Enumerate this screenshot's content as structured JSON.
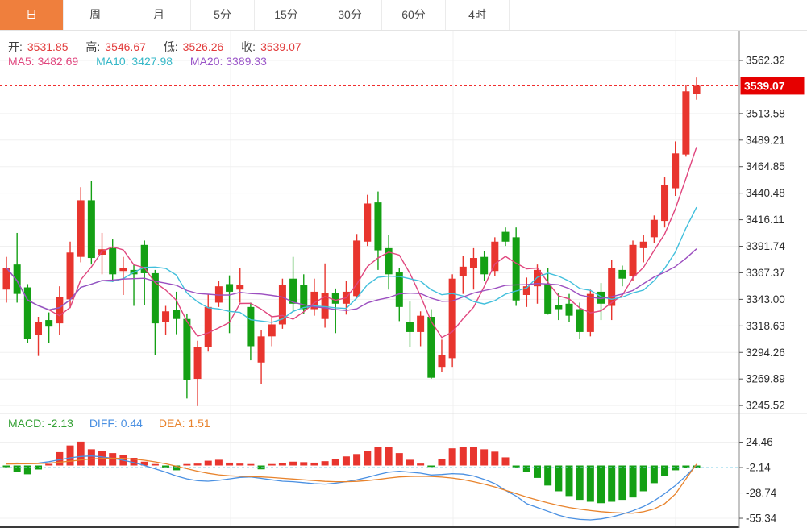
{
  "tabs": [
    {
      "label": "日",
      "active": true
    },
    {
      "label": "周",
      "active": false
    },
    {
      "label": "月",
      "active": false
    },
    {
      "label": "5分",
      "active": false
    },
    {
      "label": "15分",
      "active": false
    },
    {
      "label": "30分",
      "active": false
    },
    {
      "label": "60分",
      "active": false
    },
    {
      "label": "4时",
      "active": false
    }
  ],
  "legend": {
    "open_label": "开:",
    "open": "3531.85",
    "high_label": "高:",
    "high": "3546.67",
    "low_label": "低:",
    "low": "3526.26",
    "close_label": "收:",
    "close": "3539.07",
    "ma5": "MA5: 3482.69",
    "ma10": "MA10: 3427.98",
    "ma20": "MA20: 3389.33"
  },
  "macd_legend": {
    "macd": "MACD: -2.13",
    "diff": "DIFF: 0.44",
    "dea": "DEA: 1.51"
  },
  "colors": {
    "up": "#e8352e",
    "down": "#14a014",
    "tab_active_bg": "#ef7f3d",
    "ma5": "#e0467e",
    "ma10": "#41bfdc",
    "ma20": "#9c4fc0",
    "diff": "#4a90e2",
    "dea": "#e8832c",
    "price_line": "#ee1111",
    "tag_bg": "#e60000",
    "axis_text": "#2b2b2b",
    "grid": "#f0f0f0"
  },
  "chart_data": {
    "type": "candlestick+macd",
    "title": "K-line daily chart with MACD sub-chart",
    "legend_position": "top-left",
    "grid": true,
    "current_price": 3539.07,
    "current_price_label": "3539.07",
    "price_axis_ticks": [
      {
        "value": 3562.32,
        "label": "3562.32"
      },
      {
        "value": 3513.58,
        "label": "3513.58"
      },
      {
        "value": 3489.21,
        "label": "3489.21"
      },
      {
        "value": 3464.85,
        "label": "3464.85"
      },
      {
        "value": 3440.48,
        "label": "3440.48"
      },
      {
        "value": 3416.11,
        "label": "3416.11"
      },
      {
        "value": 3391.74,
        "label": "3391.74"
      },
      {
        "value": 3367.37,
        "label": "3367.37"
      },
      {
        "value": 3343.0,
        "label": "3343.00"
      },
      {
        "value": 3318.63,
        "label": "3318.63"
      },
      {
        "value": 3294.26,
        "label": "3294.26"
      },
      {
        "value": 3269.89,
        "label": "3269.89"
      },
      {
        "value": 3245.52,
        "label": "3245.52"
      }
    ],
    "price_range": [
      3245.52,
      3562.32
    ],
    "ma_periods": [
      5,
      10,
      20
    ],
    "ma_current": {
      "ma5": 3482.69,
      "ma10": 3427.98,
      "ma20": 3389.33
    },
    "candles_ohlc": [
      [
        3352,
        3382,
        3340,
        3372
      ],
      [
        3375,
        3404,
        3340,
        3348
      ],
      [
        3354,
        3357,
        3303,
        3307
      ],
      [
        3310,
        3327,
        3291,
        3322
      ],
      [
        3324,
        3331,
        3303,
        3318
      ],
      [
        3321,
        3355,
        3310,
        3345
      ],
      [
        3343,
        3396,
        3335,
        3386
      ],
      [
        3382,
        3446,
        3377,
        3434
      ],
      [
        3434,
        3452,
        3375,
        3381
      ],
      [
        3384,
        3404,
        3366,
        3389
      ],
      [
        3390,
        3398,
        3359,
        3366
      ],
      [
        3369,
        3382,
        3347,
        3372
      ],
      [
        3370,
        3375,
        3337,
        3366
      ],
      [
        3393,
        3397,
        3338,
        3367
      ],
      [
        3367,
        3370,
        3292,
        3321
      ],
      [
        3322,
        3337,
        3310,
        3332
      ],
      [
        3333,
        3350,
        3311,
        3325
      ],
      [
        3325,
        3330,
        3252,
        3269
      ],
      [
        3270,
        3305,
        3245,
        3299
      ],
      [
        3299,
        3348,
        3295,
        3336
      ],
      [
        3340,
        3360,
        3336,
        3355
      ],
      [
        3357,
        3365,
        3312,
        3350
      ],
      [
        3352,
        3372,
        3340,
        3356
      ],
      [
        3336,
        3340,
        3287,
        3300
      ],
      [
        3285,
        3315,
        3265,
        3309
      ],
      [
        3309,
        3327,
        3300,
        3320
      ],
      [
        3320,
        3362,
        3316,
        3356
      ],
      [
        3362,
        3382,
        3332,
        3339
      ],
      [
        3356,
        3366,
        3330,
        3334
      ],
      [
        3334,
        3362,
        3328,
        3350
      ],
      [
        3325,
        3376,
        3317,
        3349
      ],
      [
        3349,
        3353,
        3312,
        3339
      ],
      [
        3339,
        3360,
        3329,
        3350
      ],
      [
        3346,
        3403,
        3344,
        3397
      ],
      [
        3396,
        3439,
        3392,
        3431
      ],
      [
        3432,
        3442,
        3370,
        3388
      ],
      [
        3390,
        3402,
        3352,
        3366
      ],
      [
        3368,
        3372,
        3323,
        3336
      ],
      [
        3322,
        3341,
        3299,
        3313
      ],
      [
        3313,
        3332,
        3300,
        3328
      ],
      [
        3327,
        3334,
        3270,
        3271
      ],
      [
        3281,
        3306,
        3276,
        3292
      ],
      [
        3289,
        3366,
        3281,
        3362
      ],
      [
        3364,
        3383,
        3348,
        3373
      ],
      [
        3372,
        3390,
        3352,
        3381
      ],
      [
        3382,
        3387,
        3360,
        3366
      ],
      [
        3369,
        3400,
        3364,
        3396
      ],
      [
        3405,
        3409,
        3392,
        3396
      ],
      [
        3400,
        3409,
        3337,
        3342
      ],
      [
        3347,
        3363,
        3336,
        3355
      ],
      [
        3355,
        3375,
        3339,
        3370
      ],
      [
        3357,
        3372,
        3329,
        3330
      ],
      [
        3338,
        3349,
        3324,
        3334
      ],
      [
        3339,
        3348,
        3322,
        3328
      ],
      [
        3334,
        3340,
        3307,
        3313
      ],
      [
        3313,
        3352,
        3309,
        3348
      ],
      [
        3350,
        3358,
        3324,
        3339
      ],
      [
        3337,
        3379,
        3324,
        3372
      ],
      [
        3370,
        3374,
        3355,
        3362
      ],
      [
        3364,
        3397,
        3360,
        3393
      ],
      [
        3390,
        3402,
        3377,
        3396
      ],
      [
        3400,
        3420,
        3395,
        3416
      ],
      [
        3415,
        3455,
        3409,
        3448
      ],
      [
        3445,
        3488,
        3438,
        3477
      ],
      [
        3476,
        3540,
        3474,
        3534
      ],
      [
        3531.85,
        3546.67,
        3526.26,
        3539.07
      ]
    ],
    "macd_axis_ticks": [
      {
        "value": 24.46,
        "label": "24.46"
      },
      {
        "value": -2.14,
        "label": "-2.14"
      },
      {
        "value": -28.74,
        "label": "-28.74"
      },
      {
        "value": -55.34,
        "label": "-55.34"
      }
    ],
    "macd_current": {
      "macd": -2.13,
      "diff": 0.44,
      "dea": 1.51
    },
    "macd_hist": [
      -1.7,
      -6.7,
      -9.2,
      -4.2,
      1.7,
      14,
      21,
      25,
      17,
      15,
      13,
      11,
      8,
      4,
      1.5,
      -2,
      -5,
      1.5,
      2,
      5,
      6,
      3,
      2,
      1.5,
      -4,
      1.5,
      2.5,
      4,
      3.5,
      3,
      4.5,
      7,
      9.5,
      12,
      15,
      19.5,
      19.5,
      13,
      6,
      2,
      -1.5,
      7,
      18,
      19.5,
      19.5,
      17,
      14.5,
      8.5,
      -2,
      -7,
      -13,
      -21,
      -27,
      -32,
      -36,
      -38,
      -39.5,
      -38,
      -36,
      -33.5,
      -27,
      -18.5,
      -11,
      -5,
      -2.5,
      -2.13
    ],
    "diff_line": [
      2,
      2.5,
      2,
      2.5,
      4,
      6,
      8,
      9.5,
      10,
      9,
      7.5,
      5.5,
      3,
      0,
      -3.5,
      -7,
      -11,
      -14,
      -16,
      -16.5,
      -15.5,
      -14,
      -12.5,
      -12,
      -13.5,
      -15,
      -16.5,
      -17,
      -18,
      -19,
      -19.5,
      -18.5,
      -17,
      -15,
      -12.5,
      -9.5,
      -7,
      -6,
      -7,
      -8,
      -10,
      -9.5,
      -8.5,
      -9,
      -11,
      -14.5,
      -19,
      -26,
      -32,
      -40,
      -44,
      -48,
      -52,
      -55,
      -56.5,
      -57,
      -56,
      -54,
      -51,
      -47.5,
      -43,
      -37,
      -29.5,
      -21,
      -11,
      0.44
    ],
    "dea_line": [
      1.5,
      1.7,
      1.8,
      2,
      2.5,
      3.5,
      4.5,
      5.8,
      6.8,
      7.4,
      7.6,
      7.4,
      6.7,
      5.5,
      3.8,
      1.8,
      -0.8,
      -3.4,
      -6,
      -8.2,
      -9.8,
      -10.8,
      -11.3,
      -11.6,
      -12,
      -12.6,
      -13.4,
      -14.2,
      -15,
      -15.8,
      -16.6,
      -17,
      -17,
      -16.6,
      -15.8,
      -14.6,
      -13.2,
      -12,
      -11.5,
      -11.3,
      -11.5,
      -12.2,
      -13.2,
      -14.8,
      -17,
      -19.5,
      -22.5,
      -26,
      -29.5,
      -33,
      -36.2,
      -39.2,
      -41.8,
      -44,
      -45.8,
      -47.2,
      -48.4,
      -49.2,
      -49.8,
      -50,
      -48.5,
      -45.5,
      -40,
      -30,
      -14,
      1.51
    ]
  }
}
